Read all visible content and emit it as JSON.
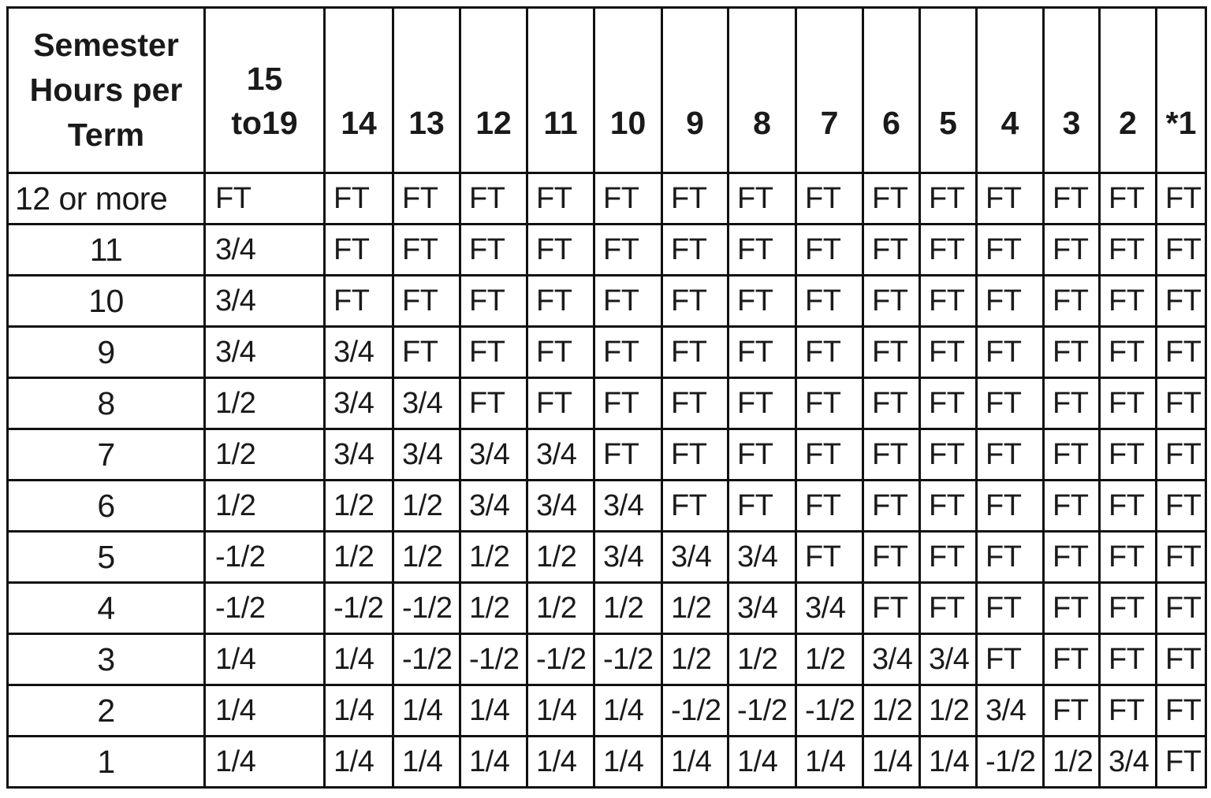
{
  "table": {
    "corner_header": [
      "Semester",
      "Hours per",
      "Term"
    ],
    "columns": [
      "15 to19",
      "14",
      "13",
      "12",
      "11",
      "10",
      "9",
      "8",
      "7",
      "6",
      "5",
      "4",
      "3",
      "2",
      "*1"
    ],
    "rows": [
      {
        "label": "12 or more",
        "cells": [
          "FT",
          "FT",
          "FT",
          "FT",
          "FT",
          "FT",
          "FT",
          "FT",
          "FT",
          "FT",
          "FT",
          "FT",
          "FT",
          "FT",
          "FT"
        ]
      },
      {
        "label": "11",
        "cells": [
          "3/4",
          "FT",
          "FT",
          "FT",
          "FT",
          "FT",
          "FT",
          "FT",
          "FT",
          "FT",
          "FT",
          "FT",
          "FT",
          "FT",
          "FT"
        ]
      },
      {
        "label": "10",
        "cells": [
          "3/4",
          "FT",
          "FT",
          "FT",
          "FT",
          "FT",
          "FT",
          "FT",
          "FT",
          "FT",
          "FT",
          "FT",
          "FT",
          "FT",
          "FT"
        ]
      },
      {
        "label": "9",
        "cells": [
          "3/4",
          "3/4",
          "FT",
          "FT",
          "FT",
          "FT",
          "FT",
          "FT",
          "FT",
          "FT",
          "FT",
          "FT",
          "FT",
          "FT",
          "FT"
        ]
      },
      {
        "label": "8",
        "cells": [
          "1/2",
          "3/4",
          "3/4",
          "FT",
          "FT",
          "FT",
          "FT",
          "FT",
          "FT",
          "FT",
          "FT",
          "FT",
          "FT",
          "FT",
          "FT"
        ]
      },
      {
        "label": "7",
        "cells": [
          "1/2",
          "3/4",
          "3/4",
          "3/4",
          "3/4",
          "FT",
          "FT",
          "FT",
          "FT",
          "FT",
          "FT",
          "FT",
          "FT",
          "FT",
          "FT"
        ]
      },
      {
        "label": "6",
        "cells": [
          "1/2",
          "1/2",
          "1/2",
          "3/4",
          "3/4",
          "3/4",
          "FT",
          "FT",
          "FT",
          "FT",
          "FT",
          "FT",
          "FT",
          "FT",
          "FT"
        ]
      },
      {
        "label": "5",
        "cells": [
          "-1/2",
          "1/2",
          "1/2",
          "1/2",
          "1/2",
          "3/4",
          "3/4",
          "3/4",
          "FT",
          "FT",
          "FT",
          "FT",
          "FT",
          "FT",
          "FT"
        ]
      },
      {
        "label": "4",
        "cells": [
          "-1/2",
          "-1/2",
          "-1/2",
          "1/2",
          "1/2",
          "1/2",
          "1/2",
          "3/4",
          "3/4",
          "FT",
          "FT",
          "FT",
          "FT",
          "FT",
          "FT"
        ]
      },
      {
        "label": "3",
        "cells": [
          "1/4",
          "1/4",
          "-1/2",
          "-1/2",
          "-1/2",
          "-1/2",
          "1/2",
          "1/2",
          "1/2",
          "3/4",
          "3/4",
          "FT",
          "FT",
          "FT",
          "FT"
        ]
      },
      {
        "label": "2",
        "cells": [
          "1/4",
          "1/4",
          "1/4",
          "1/4",
          "1/4",
          "1/4",
          "-1/2",
          "-1/2",
          "-1/2",
          "1/2",
          "1/2",
          "3/4",
          "FT",
          "FT",
          "FT"
        ]
      },
      {
        "label": "1",
        "cells": [
          "1/4",
          "1/4",
          "1/4",
          "1/4",
          "1/4",
          "1/4",
          "1/4",
          "1/4",
          "1/4",
          "1/4",
          "1/4",
          "-1/2",
          "1/2",
          "3/4",
          "FT"
        ]
      }
    ]
  }
}
